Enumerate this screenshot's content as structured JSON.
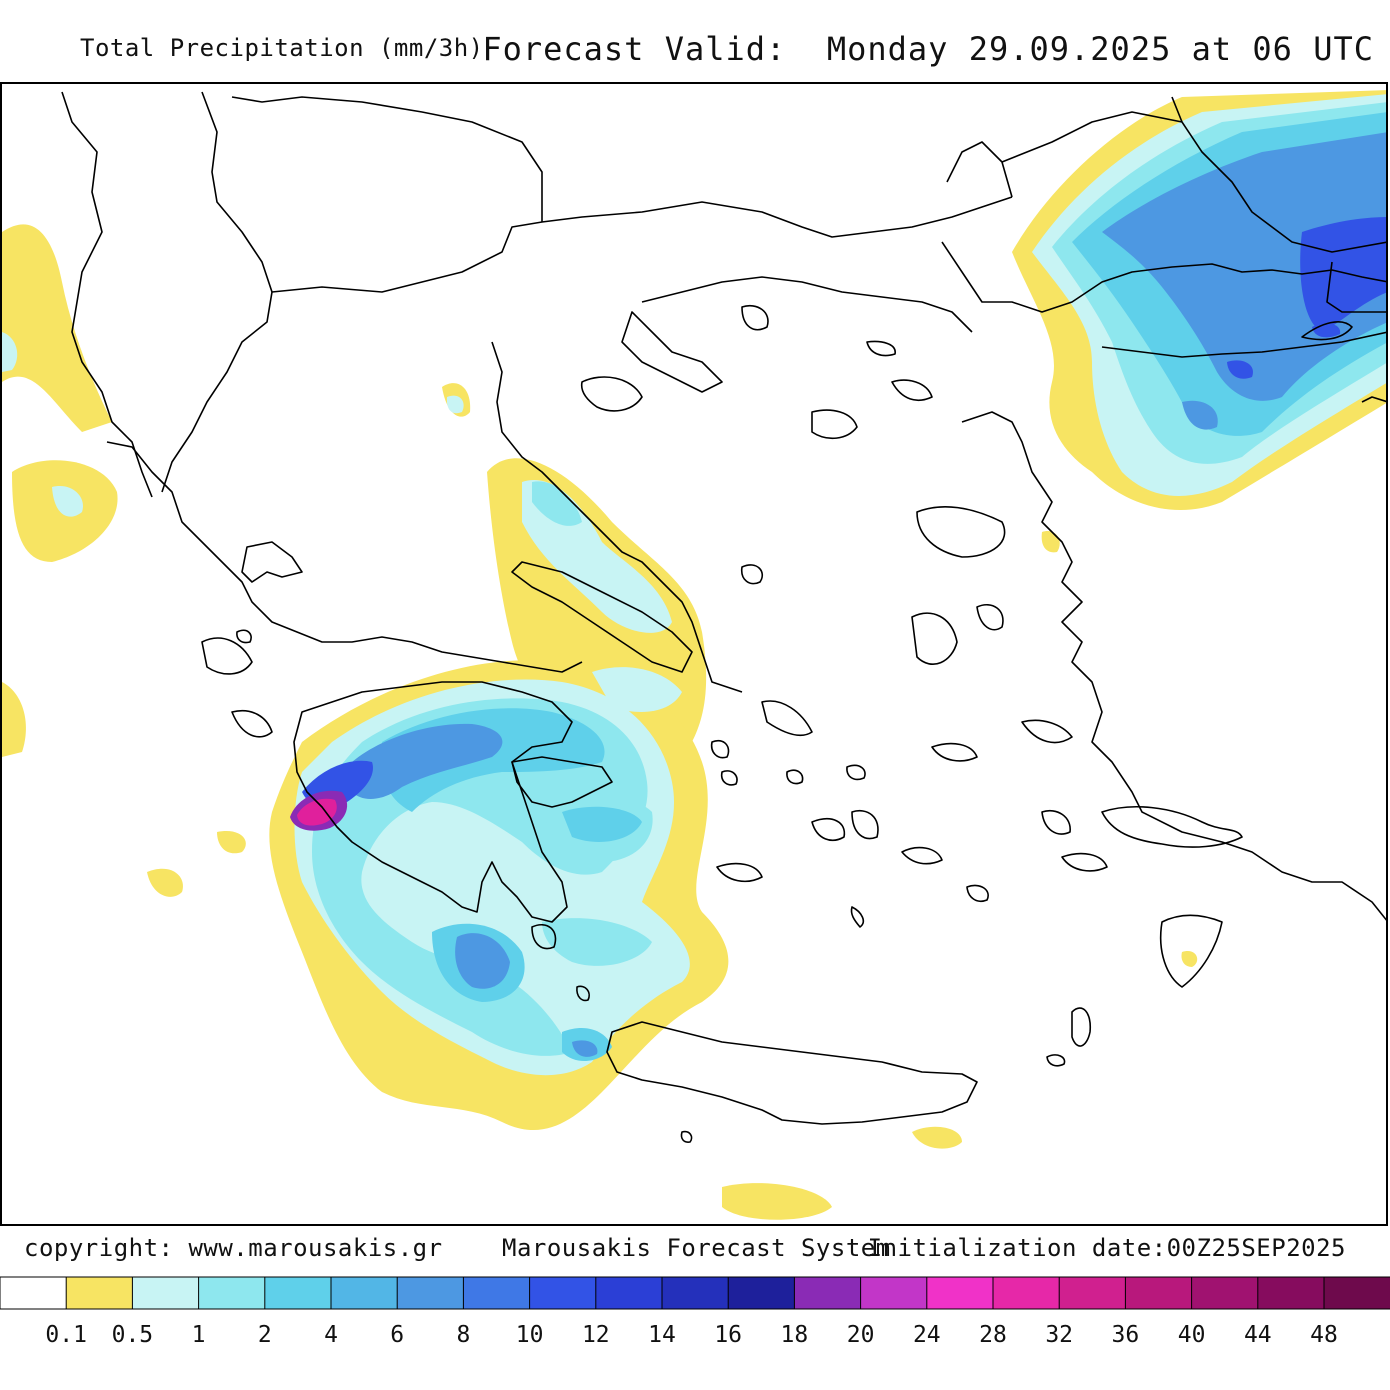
{
  "header": {
    "title": "Total Precipitation (mm/3h)",
    "valid": "Forecast Valid:  Monday 29.09.2025 at 06 UTC"
  },
  "footer": {
    "copyright": "copyright: www.marousakis.gr",
    "system": "Marousakis Forecast System",
    "init": "Initialization date:00Z25SEP2025"
  },
  "legend": {
    "colors": [
      "#ffffff",
      "#f7e463",
      "#c8f4f4",
      "#8ee7ee",
      "#5fd0ea",
      "#52b6e6",
      "#4d98e2",
      "#3f78e6",
      "#3253e6",
      "#2b3fd6",
      "#2430bb",
      "#1e209b",
      "#8a2bb5",
      "#c236c8",
      "#f032c8",
      "#e628a8",
      "#d0208f",
      "#b8187c",
      "#a01270",
      "#860c5e",
      "#6e0a4c"
    ],
    "labels": [
      "0.1",
      "0.5",
      "1",
      "2",
      "4",
      "6",
      "8",
      "10",
      "12",
      "14",
      "16",
      "18",
      "20",
      "24",
      "28",
      "32",
      "36",
      "40",
      "44",
      "48"
    ]
  },
  "palette": {
    "light_yellow": "#f7e463",
    "pale_cyan": "#c8f4f4",
    "cyan": "#8ee7ee",
    "sky": "#5fd0ea",
    "blue": "#4d98e2",
    "deep_blue": "#3253e6",
    "magenta": "#e0209c",
    "coast": "#000000"
  }
}
